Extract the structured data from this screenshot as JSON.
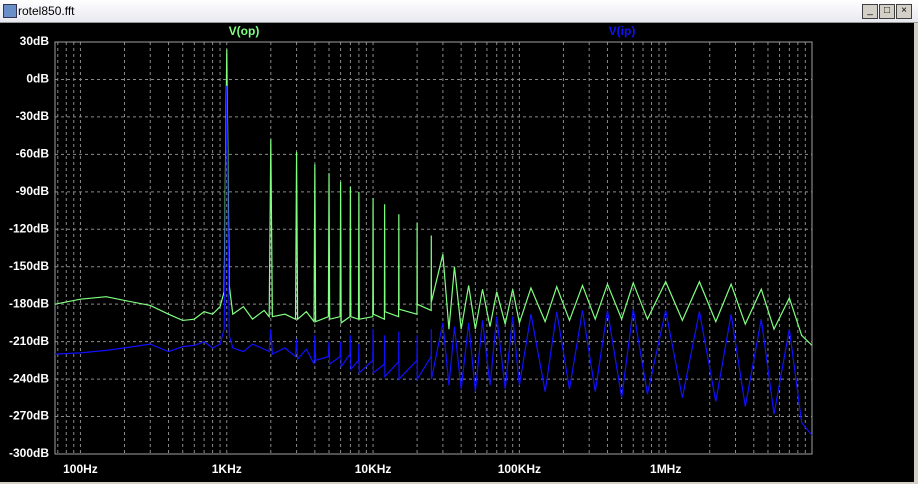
{
  "window_title": "rotel850.fft",
  "chart_data": {
    "type": "line",
    "x": [
      67,
      100,
      150,
      200,
      300,
      400,
      500,
      600,
      700,
      800,
      900,
      960,
      1000,
      1040,
      1100,
      1300,
      1500,
      1800,
      1950,
      2000,
      2050,
      2500,
      2950,
      3000,
      3050,
      3500,
      3950,
      4000,
      4050,
      4950,
      5000,
      5050,
      5950,
      6000,
      6050,
      6950,
      7000,
      7050,
      7950,
      8000,
      8050,
      9950,
      10000,
      10050,
      11950,
      12000,
      12050,
      14950,
      15000,
      15050,
      19950,
      20000,
      20050,
      24950,
      25000,
      25050,
      30000,
      33000,
      36000,
      40000,
      45000,
      50000,
      56000,
      63000,
      70000,
      80000,
      90000,
      100000,
      120000,
      150000,
      180000,
      220000,
      270000,
      330000,
      400000,
      500000,
      600000,
      750000,
      1000000,
      1300000,
      1700000,
      2200000,
      2800000,
      3500000,
      4500000,
      5500000,
      7000000,
      8500000,
      10000000
    ],
    "series": [
      {
        "name": "V(op)",
        "color": "#80ff80",
        "values": [
          -180,
          -176,
          -174,
          -177,
          -181,
          -188,
          -193,
          -192,
          -186,
          -188,
          -182,
          -170,
          24,
          -165,
          -188,
          -182,
          -192,
          -185,
          -190,
          -48,
          -190,
          -188,
          -192,
          -58,
          -192,
          -186,
          -194,
          -68,
          -194,
          -190,
          -75,
          -192,
          -190,
          -82,
          -195,
          -190,
          -86,
          -190,
          -192,
          -90,
          -192,
          -190,
          -95,
          -188,
          -192,
          -100,
          -186,
          -190,
          -108,
          -184,
          -188,
          -115,
          -180,
          -185,
          -125,
          -178,
          -140,
          -200,
          -150,
          -200,
          -165,
          -200,
          -168,
          -198,
          -170,
          -196,
          -168,
          -195,
          -167,
          -194,
          -166,
          -193,
          -165,
          -192,
          -164,
          -192,
          -163,
          -192,
          -162,
          -193,
          -162,
          -194,
          -164,
          -196,
          -168,
          -200,
          -175,
          -205,
          -213
        ]
      },
      {
        "name": "V(ip)",
        "color": "#1010ff",
        "values": [
          -220,
          -219,
          -217,
          -215,
          -212,
          -218,
          -214,
          -213,
          -210,
          -215,
          -212,
          -200,
          -5,
          -205,
          -215,
          -218,
          -212,
          -216,
          -218,
          -200,
          -220,
          -215,
          -222,
          -208,
          -224,
          -216,
          -228,
          -205,
          -225,
          -222,
          -210,
          -228,
          -222,
          -210,
          -230,
          -220,
          -205,
          -232,
          -225,
          -212,
          -235,
          -225,
          -200,
          -235,
          -228,
          -205,
          -238,
          -226,
          -202,
          -240,
          -225,
          -205,
          -240,
          -222,
          -200,
          -240,
          -195,
          -245,
          -198,
          -248,
          -195,
          -250,
          -193,
          -245,
          -190,
          -248,
          -190,
          -245,
          -188,
          -250,
          -186,
          -248,
          -185,
          -250,
          -185,
          -255,
          -184,
          -252,
          -185,
          -255,
          -186,
          -258,
          -188,
          -262,
          -192,
          -268,
          -200,
          -275,
          -285
        ]
      }
    ],
    "xlim": [
      67,
      10000000
    ],
    "xscale": "log",
    "xticks": [
      {
        "value": 100,
        "label": "100Hz"
      },
      {
        "value": 1000,
        "label": "1KHz"
      },
      {
        "value": 10000,
        "label": "10KHz"
      },
      {
        "value": 100000,
        "label": "100KHz"
      },
      {
        "value": 1000000,
        "label": "1MHz"
      }
    ],
    "xminor": [
      70,
      80,
      90,
      200,
      300,
      400,
      500,
      600,
      700,
      800,
      900,
      2000,
      3000,
      4000,
      5000,
      6000,
      7000,
      8000,
      9000,
      20000,
      30000,
      40000,
      50000,
      60000,
      70000,
      80000,
      90000,
      200000,
      300000,
      400000,
      500000,
      600000,
      700000,
      800000,
      900000,
      2000000,
      3000000,
      4000000,
      5000000,
      6000000,
      7000000,
      8000000,
      9000000
    ],
    "ylim": [
      -300,
      30
    ],
    "yticks": [
      {
        "value": 30,
        "label": "30dB"
      },
      {
        "value": 0,
        "label": "0dB"
      },
      {
        "value": -30,
        "label": "-30dB"
      },
      {
        "value": -60,
        "label": "-60dB"
      },
      {
        "value": -90,
        "label": "-90dB"
      },
      {
        "value": -120,
        "label": "-120dB"
      },
      {
        "value": -150,
        "label": "-150dB"
      },
      {
        "value": -180,
        "label": "-180dB"
      },
      {
        "value": -210,
        "label": "-210dB"
      },
      {
        "value": -240,
        "label": "-240dB"
      },
      {
        "value": -270,
        "label": "-270dB"
      },
      {
        "value": -300,
        "label": "-300dB"
      }
    ],
    "grid": true
  }
}
